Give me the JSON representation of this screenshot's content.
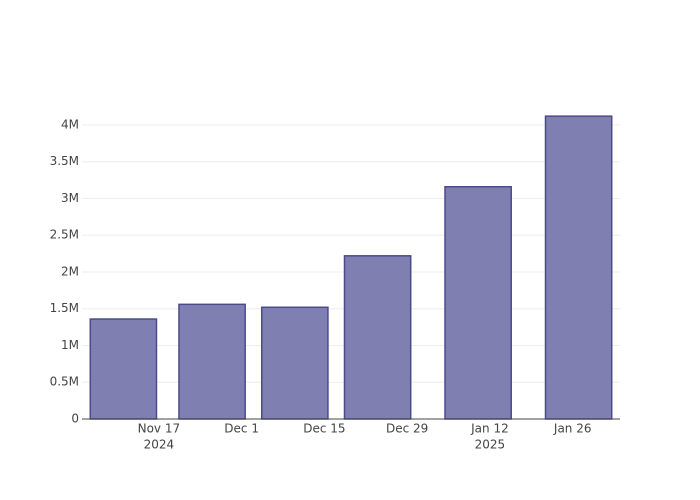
{
  "chart_data": {
    "type": "bar",
    "x": [
      "2024-11-11",
      "2024-11-26",
      "2024-12-10",
      "2024-12-24",
      "2025-01-10",
      "2025-01-27"
    ],
    "values": [
      1360000,
      1560000,
      1520000,
      2220000,
      3160000,
      4120000
    ],
    "color": "#7f7fb2",
    "edge_color": "#4b4b8c",
    "xlim": [
      "2024-11-04",
      "2025-02-03"
    ],
    "xticks": [
      {
        "value": "2024-11-17",
        "label": "Nov 17",
        "year": "2024"
      },
      {
        "value": "2024-12-01",
        "label": "Dec 1"
      },
      {
        "value": "2024-12-15",
        "label": "Dec 15"
      },
      {
        "value": "2024-12-29",
        "label": "Dec 29"
      },
      {
        "value": "2025-01-12",
        "label": "Jan 12",
        "year": "2025"
      },
      {
        "value": "2025-01-26",
        "label": "Jan 26"
      }
    ],
    "ylim": [
      0,
      4340000
    ],
    "yticks": [
      0,
      {
        "value": 500000,
        "label": "0.5M"
      },
      {
        "value": 1000000,
        "label": "1M"
      },
      {
        "value": 1500000,
        "label": "1.5M"
      },
      {
        "value": 2000000,
        "label": "2M"
      },
      {
        "value": 2500000,
        "label": "2.5M"
      },
      {
        "value": 3000000,
        "label": "3M"
      },
      {
        "value": 3500000,
        "label": "3.5M"
      },
      {
        "value": 4000000,
        "label": "4M"
      }
    ],
    "grid": true
  }
}
